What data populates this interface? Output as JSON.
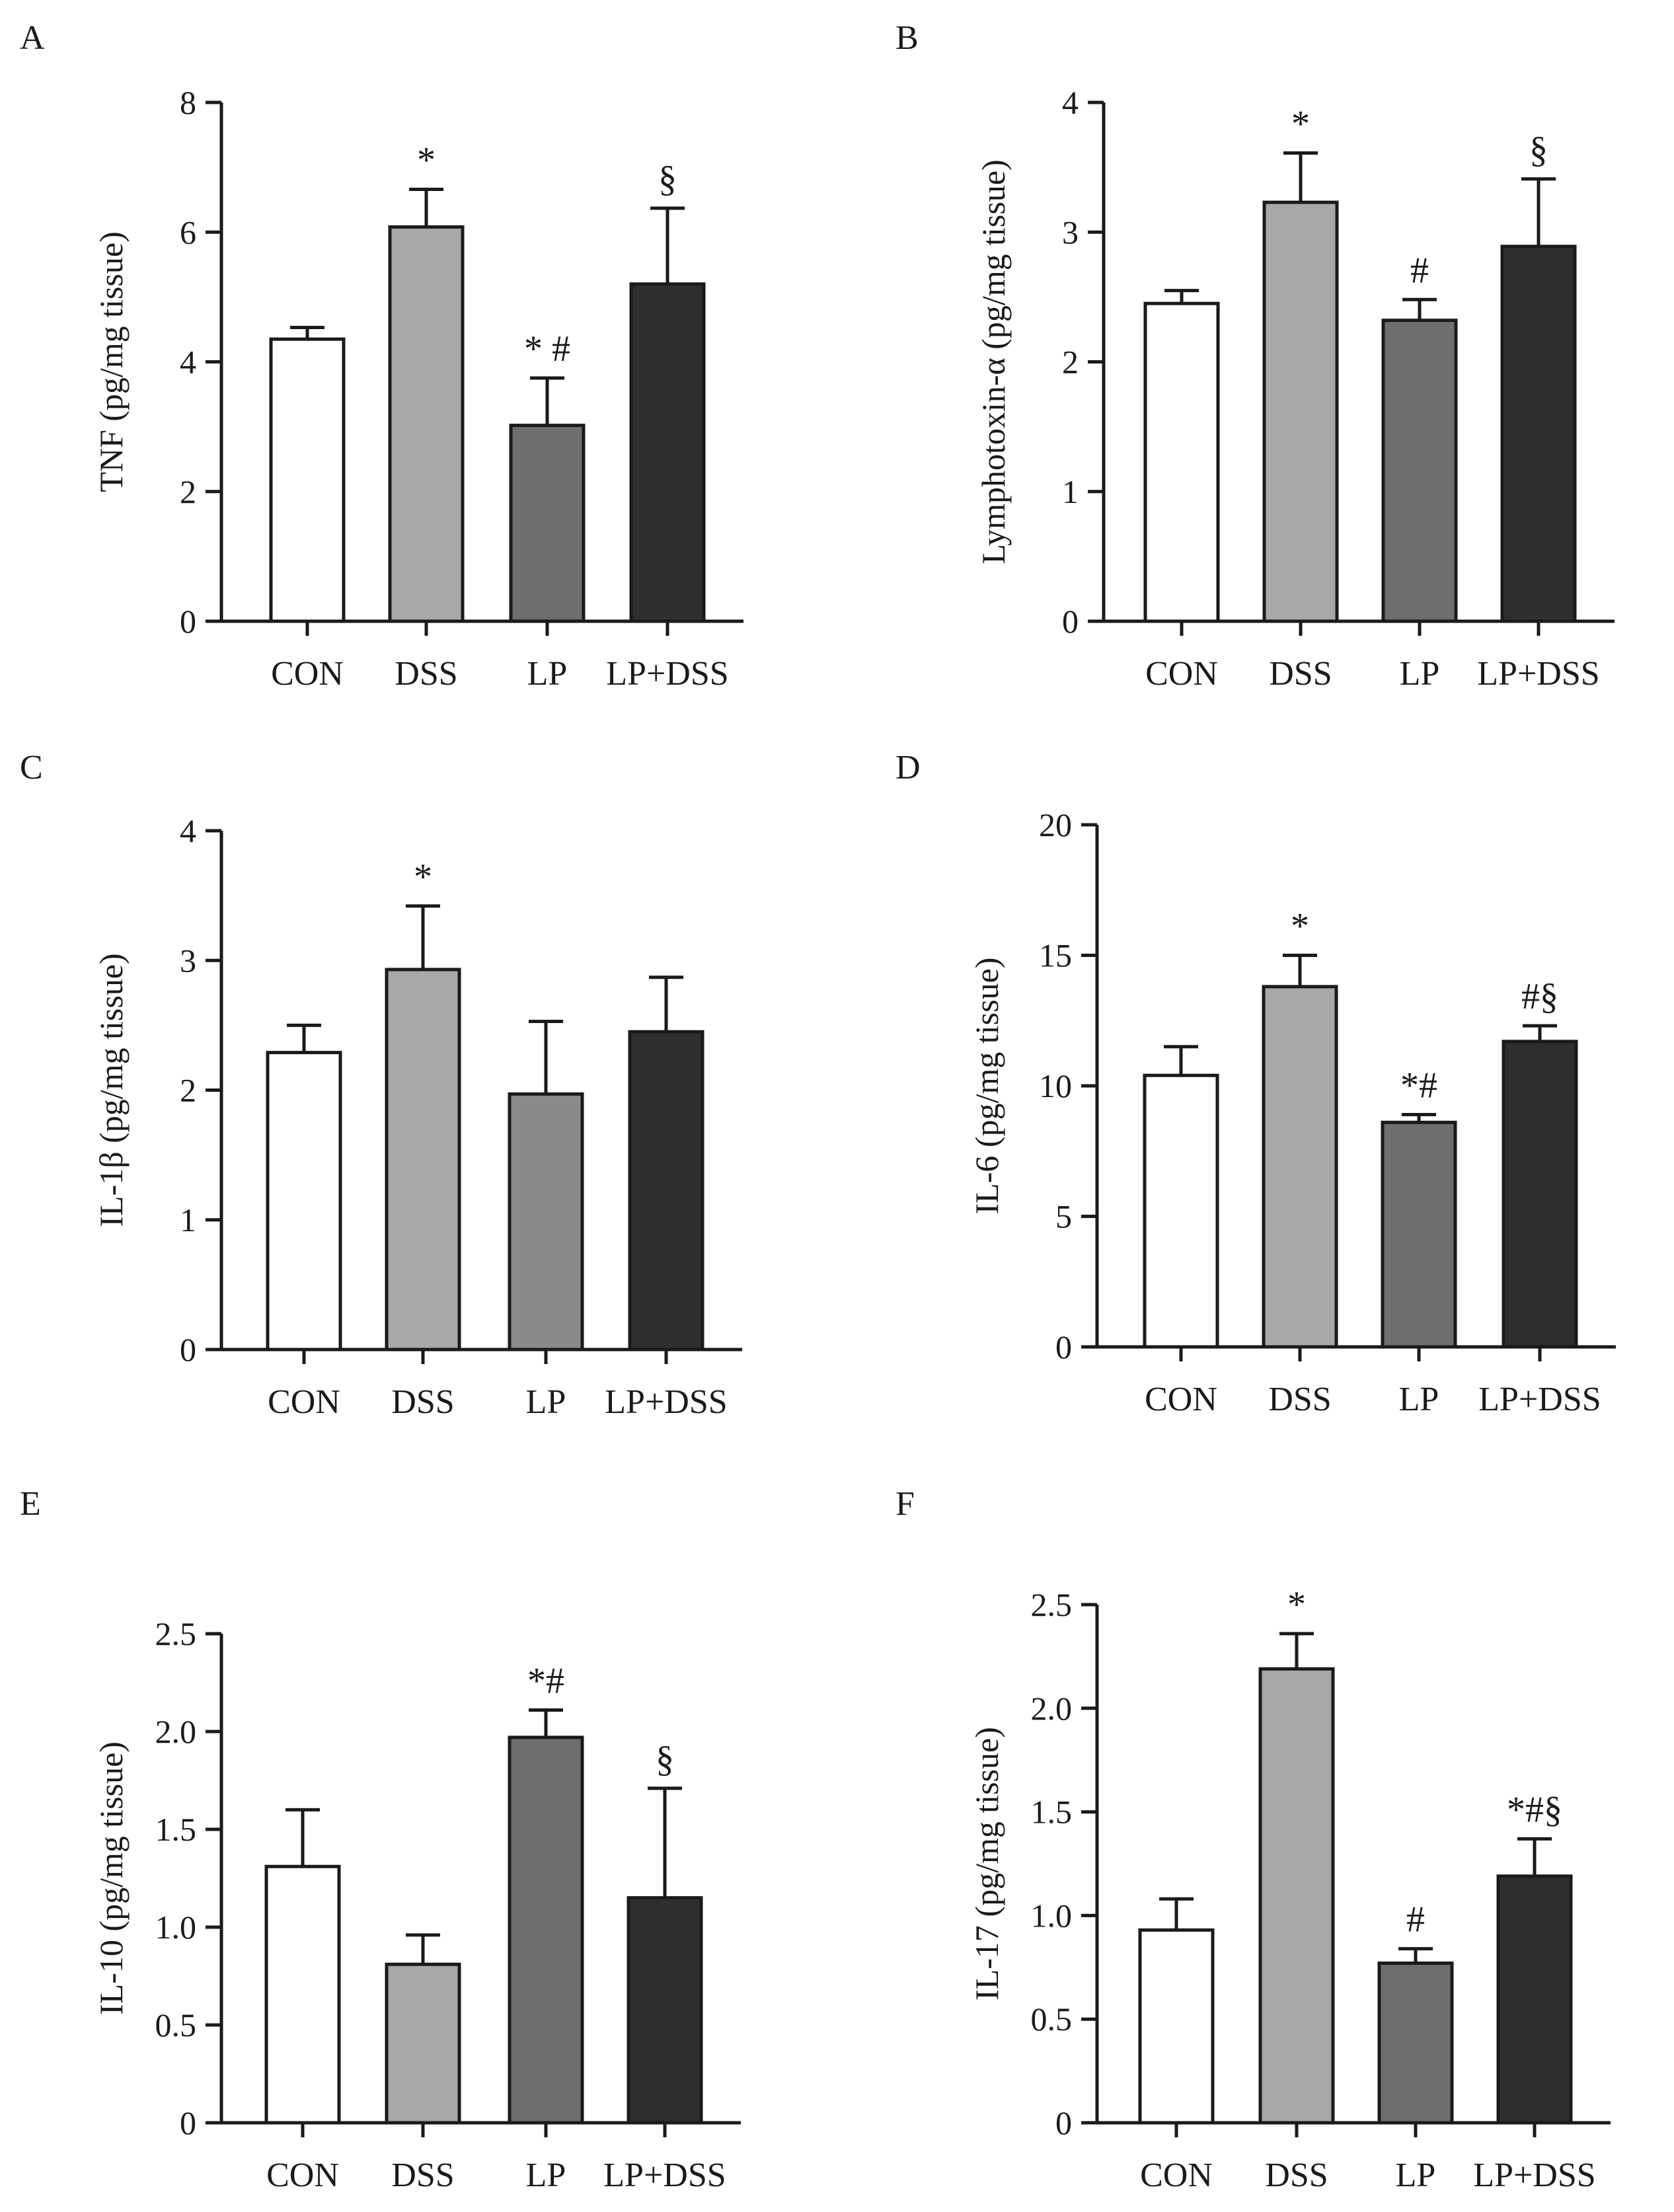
{
  "figure": {
    "background": "#ffffff",
    "axis_color": "#1a1a1a"
  },
  "chart_data": [
    {
      "panel": "A",
      "type": "bar",
      "title": "",
      "xlabel": "",
      "ylabel": "TNF (pg/mg tissue)",
      "categories": [
        "CON",
        "DSS",
        "LP",
        "LP+DSS"
      ],
      "values": [
        4.35,
        6.08,
        3.02,
        5.2
      ],
      "errors": [
        0.18,
        0.58,
        0.73,
        1.17
      ],
      "annotations": [
        "",
        "*",
        "* #",
        "§"
      ],
      "colors": [
        "#ffffff",
        "#a8a8a8",
        "#6e6e6e",
        "#2e2e2e"
      ],
      "ylim": [
        0,
        8
      ],
      "yticks": [
        0,
        2,
        4,
        6,
        8
      ],
      "ytick_labels": [
        "0",
        "2",
        "4",
        "6",
        "8"
      ],
      "grid": false
    },
    {
      "panel": "B",
      "type": "bar",
      "title": "",
      "xlabel": "",
      "ylabel": "Lymphotoxin-α (pg/mg tissue)",
      "categories": [
        "CON",
        "DSS",
        "LP",
        "LP+DSS"
      ],
      "values": [
        2.45,
        3.23,
        2.32,
        2.89
      ],
      "errors": [
        0.1,
        0.38,
        0.16,
        0.52
      ],
      "annotations": [
        "",
        "*",
        "#",
        "§"
      ],
      "colors": [
        "#ffffff",
        "#a8a8a8",
        "#6e6e6e",
        "#2e2e2e"
      ],
      "ylim": [
        0,
        4
      ],
      "yticks": [
        0,
        1,
        2,
        3,
        4
      ],
      "ytick_labels": [
        "0",
        "1",
        "2",
        "3",
        "4"
      ],
      "grid": false
    },
    {
      "panel": "C",
      "type": "bar",
      "title": "",
      "xlabel": "",
      "ylabel": "IL-1β (pg/mg tissue)",
      "categories": [
        "CON",
        "DSS",
        "LP",
        "LP+DSS"
      ],
      "values": [
        2.29,
        2.93,
        1.97,
        2.45
      ],
      "errors": [
        0.21,
        0.49,
        0.56,
        0.42
      ],
      "annotations": [
        "",
        "*",
        "",
        ""
      ],
      "colors": [
        "#ffffff",
        "#a8a8a8",
        "#8a8a8a",
        "#2e2e2e"
      ],
      "ylim": [
        0,
        4
      ],
      "yticks": [
        0,
        1,
        2,
        3,
        4
      ],
      "ytick_labels": [
        "0",
        "1",
        "2",
        "3",
        "4"
      ],
      "grid": false
    },
    {
      "panel": "D",
      "type": "bar",
      "title": "",
      "xlabel": "",
      "ylabel": "IL-6 (pg/mg tissue)",
      "categories": [
        "CON",
        "DSS",
        "LP",
        "LP+DSS"
      ],
      "values": [
        10.4,
        13.8,
        8.6,
        11.7
      ],
      "errors": [
        1.1,
        1.2,
        0.3,
        0.6
      ],
      "annotations": [
        "",
        "*",
        "*#",
        "#§"
      ],
      "colors": [
        "#ffffff",
        "#a8a8a8",
        "#6e6e6e",
        "#2e2e2e"
      ],
      "ylim": [
        0,
        20
      ],
      "yticks": [
        0,
        5,
        10,
        15,
        20
      ],
      "ytick_labels": [
        "0",
        "5",
        "10",
        "15",
        "20"
      ],
      "grid": false
    },
    {
      "panel": "E",
      "type": "bar",
      "title": "",
      "xlabel": "",
      "ylabel": "IL-10 (pg/mg tissue)",
      "categories": [
        "CON",
        "DSS",
        "LP",
        "LP+DSS"
      ],
      "values": [
        1.31,
        0.81,
        1.97,
        1.15
      ],
      "errors": [
        0.29,
        0.15,
        0.14,
        0.56
      ],
      "annotations": [
        "",
        "",
        "*#",
        "§"
      ],
      "colors": [
        "#ffffff",
        "#a8a8a8",
        "#6e6e6e",
        "#2e2e2e"
      ],
      "ylim": [
        0,
        2.5
      ],
      "yticks": [
        0,
        0.5,
        1.0,
        1.5,
        2.0,
        2.5
      ],
      "ytick_labels": [
        "0",
        "0.5",
        "1.0",
        "1.5",
        "2.0",
        "2.5"
      ],
      "grid": false
    },
    {
      "panel": "F",
      "type": "bar",
      "title": "",
      "xlabel": "",
      "ylabel": "IL-17 (pg/mg tissue)",
      "categories": [
        "CON",
        "DSS",
        "LP",
        "LP+DSS"
      ],
      "values": [
        0.93,
        2.19,
        0.77,
        1.19
      ],
      "errors": [
        0.15,
        0.17,
        0.07,
        0.18
      ],
      "annotations": [
        "",
        "*",
        "#",
        "*#§"
      ],
      "colors": [
        "#ffffff",
        "#a8a8a8",
        "#6e6e6e",
        "#2e2e2e"
      ],
      "ylim": [
        0,
        2.5
      ],
      "yticks": [
        0,
        0.5,
        1.0,
        1.5,
        2.0,
        2.5
      ],
      "ytick_labels": [
        "0",
        "0.5",
        "1.0",
        "1.5",
        "2.0",
        "2.5"
      ],
      "grid": false
    }
  ]
}
